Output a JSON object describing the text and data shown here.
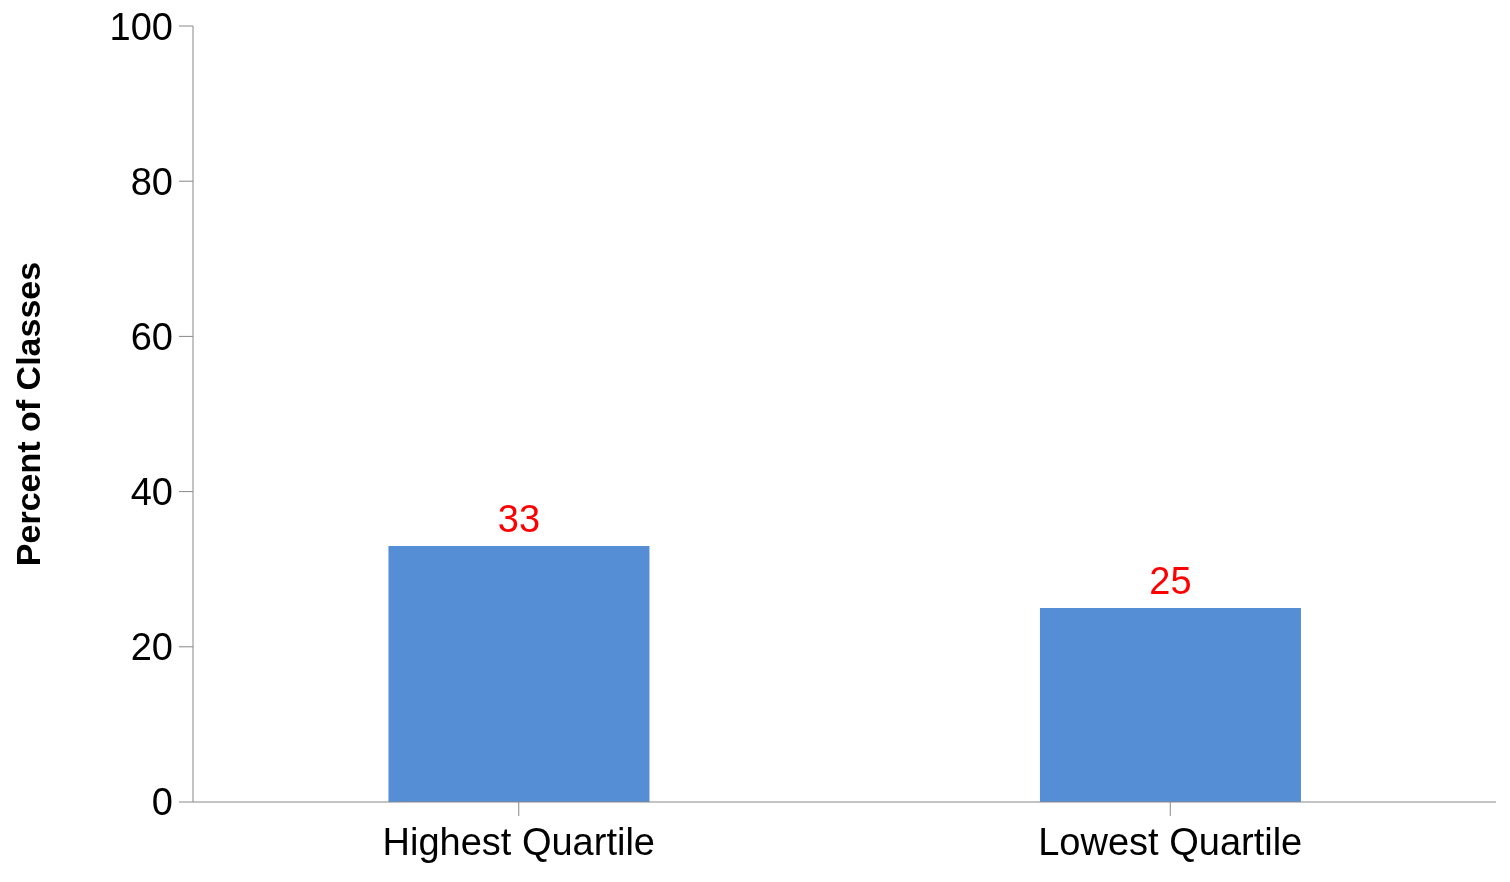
{
  "chart_data": {
    "type": "bar",
    "ylabel": "Percent of Classes",
    "categories": [
      "Highest Quartile",
      "Lowest Quartile"
    ],
    "values": [
      33,
      25
    ],
    "color": "#558ed5",
    "ylim": [
      0,
      100
    ],
    "yticks": [
      0,
      20,
      40,
      60,
      80,
      100
    ],
    "grid": false,
    "legend": false,
    "data_labels": true
  }
}
